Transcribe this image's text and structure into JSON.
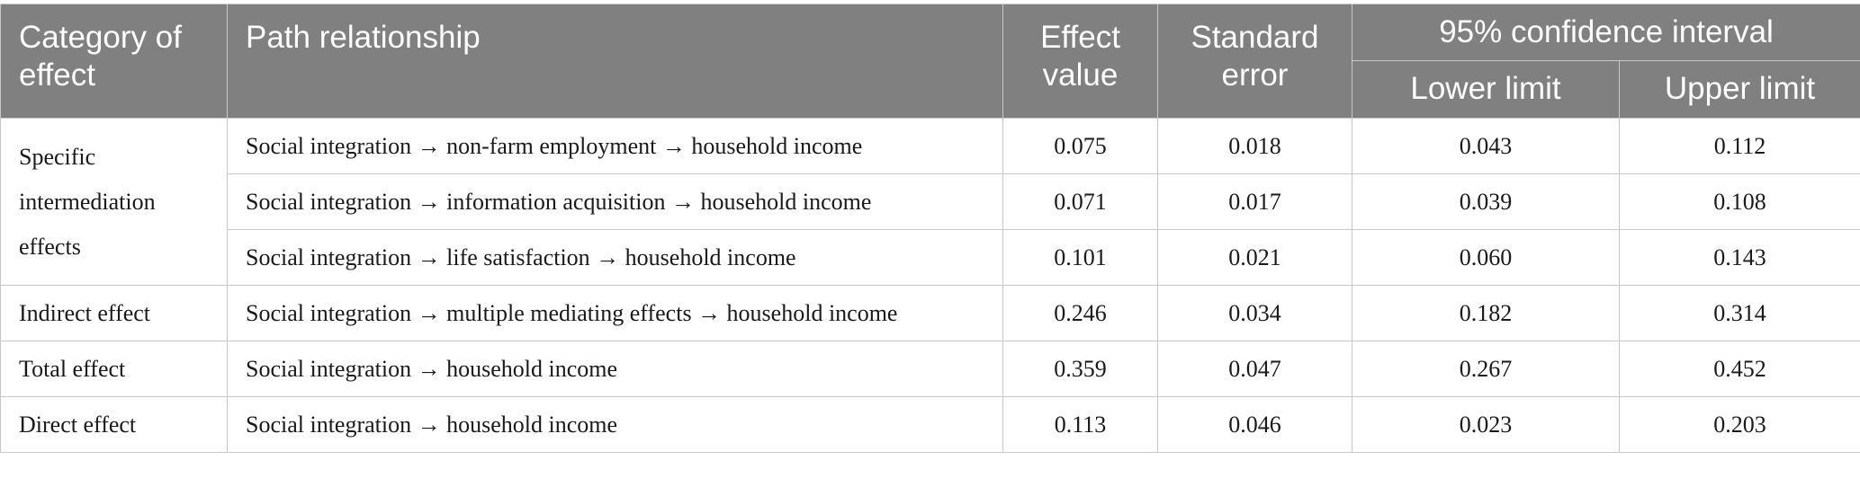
{
  "table": {
    "headers": {
      "category": "Category of effect",
      "path": "Path relationship",
      "effect": "Effect value",
      "se": "Standard error",
      "ci": "95% confidence interval",
      "lower": "Lower limit",
      "upper": "Upper limit"
    },
    "groups": {
      "specific": "Specific intermediation effects",
      "indirect": "Indirect effect",
      "total": "Total effect",
      "direct": "Direct effect"
    },
    "rows": [
      {
        "path": "Social integration → non-farm employment → household income",
        "effect": "0.075",
        "se": "0.018",
        "lower": "0.043",
        "upper": "0.112"
      },
      {
        "path": "Social integration → information acquisition → household income",
        "effect": "0.071",
        "se": "0.017",
        "lower": "0.039",
        "upper": "0.108"
      },
      {
        "path": "Social integration → life satisfaction → household income",
        "effect": "0.101",
        "se": "0.021",
        "lower": "0.060",
        "upper": "0.143"
      },
      {
        "path": "Social integration → multiple mediating effects → household income",
        "effect": "0.246",
        "se": "0.034",
        "lower": "0.182",
        "upper": "0.314"
      },
      {
        "path": "Social integration → household income",
        "effect": "0.359",
        "se": "0.047",
        "lower": "0.267",
        "upper": "0.452"
      },
      {
        "path": "Social integration → household income",
        "effect": "0.113",
        "se": "0.046",
        "lower": "0.023",
        "upper": "0.203"
      }
    ]
  }
}
